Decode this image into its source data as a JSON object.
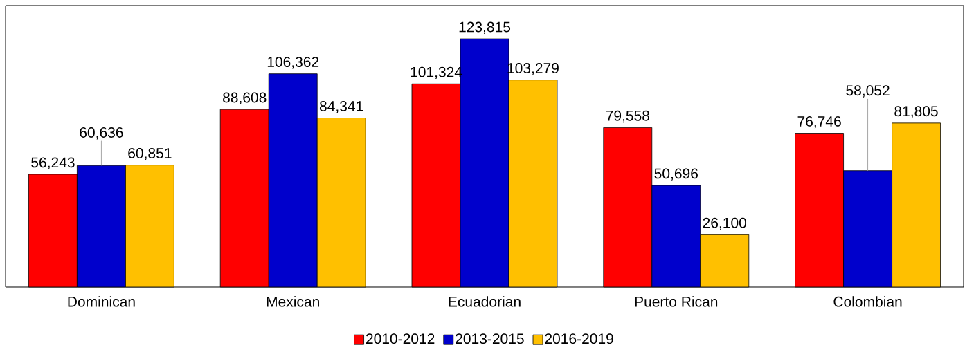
{
  "chart_data": {
    "type": "bar",
    "categories": [
      "Dominican",
      "Mexican",
      "Ecuadorian",
      "Puerto Rican",
      "Colombian"
    ],
    "series": [
      {
        "name": "2010-2012",
        "color": "#ff0000",
        "values": [
          56243,
          88608,
          101324,
          79558,
          76746
        ],
        "value_labels": [
          "56,243",
          "88,608",
          "101,324",
          "79,558",
          "76,746"
        ]
      },
      {
        "name": "2013-2015",
        "color": "#0000cc",
        "values": [
          60636,
          106362,
          123815,
          50696,
          58052
        ],
        "value_labels": [
          "60,636",
          "106,362",
          "123,815",
          "50,696",
          "58,052"
        ]
      },
      {
        "name": "2016-2019",
        "color": "#ffc000",
        "values": [
          60851,
          84341,
          103279,
          26100,
          81805
        ],
        "value_labels": [
          "60,851",
          "84,341",
          "103,279",
          "26,100",
          "81,805"
        ]
      }
    ],
    "legend": "bottom"
  }
}
